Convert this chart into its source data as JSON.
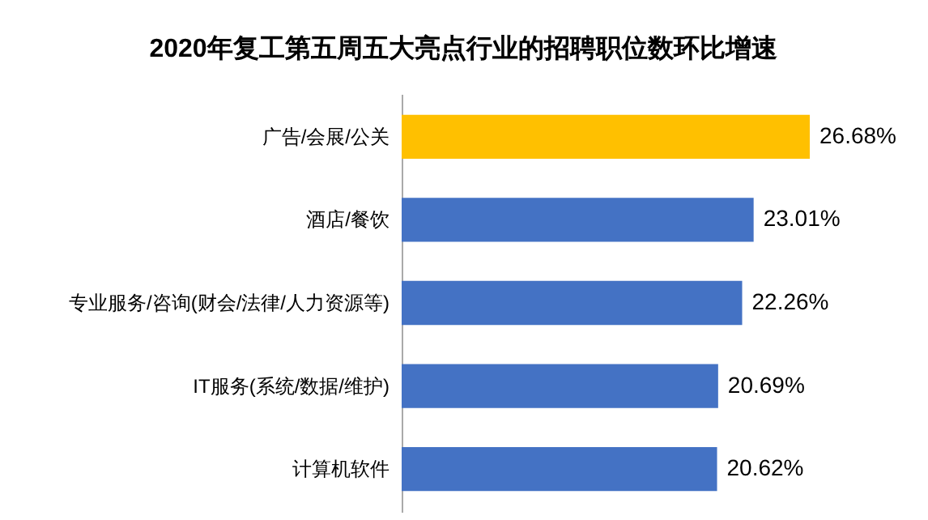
{
  "chart_data": {
    "type": "bar",
    "orientation": "horizontal",
    "title": "2020年复工第五周五大亮点行业的招聘职位数环比增速",
    "categories": [
      "广告/会展/公关",
      "酒店/餐饮",
      "专业服务/咨询(财会/法律/人力资源等)",
      "IT服务(系统/数据/维护)",
      "计算机软件"
    ],
    "values": [
      26.68,
      23.01,
      22.26,
      20.69,
      20.62
    ],
    "colors": [
      "#ffc000",
      "#4472c4",
      "#4472c4",
      "#4472c4",
      "#4472c4"
    ],
    "value_labels": [
      "26.68%",
      "23.01%",
      "22.26%",
      "20.69%",
      "20.62%"
    ]
  }
}
